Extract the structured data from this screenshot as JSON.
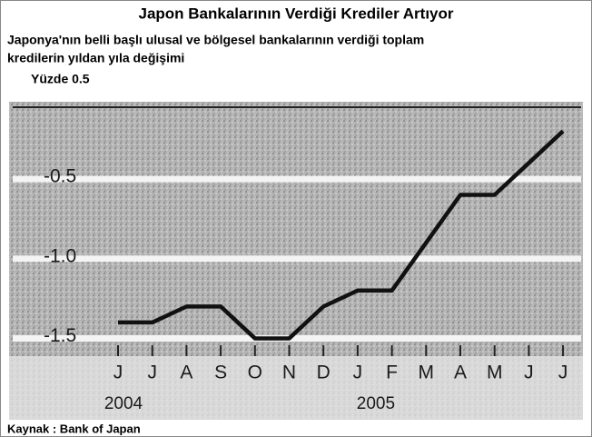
{
  "chart_data": {
    "type": "line",
    "title": "Japon Bankalarının Verdiği Krediler Artıyor",
    "subtitle": [
      "Japonya'nın belli başlı ulusal ve bölgesel bankalarının verdiği toplam",
      "kredilerin yıldan yıla değişimi"
    ],
    "y_label": "Yüzde 0.5",
    "categories": [
      "J",
      "J",
      "A",
      "S",
      "O",
      "N",
      "D",
      "J",
      "F",
      "M",
      "A",
      "M",
      "J",
      "J"
    ],
    "series": [
      {
        "name": null,
        "color": "#111111",
        "values": [
          -1.4,
          -1.4,
          -1.3,
          -1.3,
          -1.5,
          -1.5,
          -1.3,
          -1.2,
          -1.2,
          -0.9,
          -0.6,
          -0.6,
          -0.4,
          -0.2
        ]
      }
    ],
    "ylim": [
      -1.6,
      -0.05
    ],
    "yticks": [
      -0.5,
      {
        "value": -1,
        "label": "-1.0"
      },
      -1.5
    ],
    "grid": true,
    "year_labels": [
      {
        "label": "2004",
        "at": 0
      },
      {
        "label": "2005",
        "at": 7
      }
    ],
    "source": "Kaynak : Bank of Japan"
  }
}
